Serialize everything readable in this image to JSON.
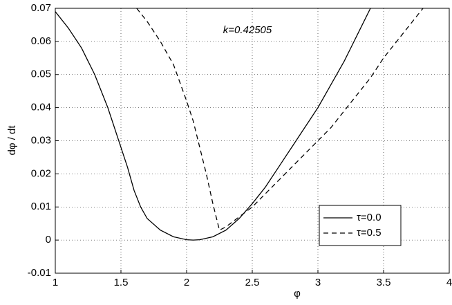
{
  "chart_data": {
    "type": "line",
    "x_label": "φ",
    "y_label": "dφ / dt",
    "annotation": "k=0.42505",
    "xlim": [
      1,
      4
    ],
    "xticks": [
      1,
      1.5,
      2,
      2.5,
      3,
      3.5,
      4
    ],
    "ylim": [
      -0.01,
      0.07
    ],
    "yticks": [
      -0.01,
      0,
      0.01,
      0.02,
      0.03,
      0.04,
      0.05,
      0.06,
      0.07
    ],
    "grid": true,
    "legend": "lower right",
    "series": [
      {
        "name": "τ=0.0",
        "color": "#000000",
        "dash": "solid",
        "x": [
          1,
          1.1,
          1.2,
          1.3,
          1.4,
          1.5,
          1.55,
          1.6,
          1.65,
          1.7,
          1.8,
          1.9,
          2.0,
          2.05,
          2.1,
          2.2,
          2.3,
          2.4,
          2.5,
          2.6,
          2.7,
          2.8,
          2.9,
          3.0,
          3.1,
          3.2,
          3.3,
          3.4
        ],
        "values": [
          0.069,
          0.064,
          0.058,
          0.05,
          0.04,
          0.028,
          0.022,
          0.015,
          0.01,
          0.0065,
          0.003,
          0.001,
          0.0001,
          0,
          0.0001,
          0.001,
          0.003,
          0.0065,
          0.011,
          0.016,
          0.022,
          0.028,
          0.034,
          0.04,
          0.047,
          0.054,
          0.062,
          0.07
        ]
      },
      {
        "name": "τ=0.5",
        "color": "#000000",
        "dash": "dashed",
        "x": [
          1.62,
          1.7,
          1.8,
          1.9,
          2.0,
          2.05,
          2.1,
          2.15,
          2.2,
          2.25,
          2.3,
          2.4,
          2.5,
          2.6,
          2.7,
          2.8,
          2.9,
          3.0,
          3.1,
          3.2,
          3.3,
          3.4,
          3.5,
          3.6,
          3.7,
          3.8
        ],
        "values": [
          0.07,
          0.066,
          0.06,
          0.053,
          0.042,
          0.036,
          0.028,
          0.02,
          0.011,
          0.003,
          0.004,
          0.007,
          0.01,
          0.014,
          0.018,
          0.022,
          0.026,
          0.03,
          0.034,
          0.039,
          0.044,
          0.049,
          0.055,
          0.06,
          0.065,
          0.07
        ]
      }
    ]
  }
}
